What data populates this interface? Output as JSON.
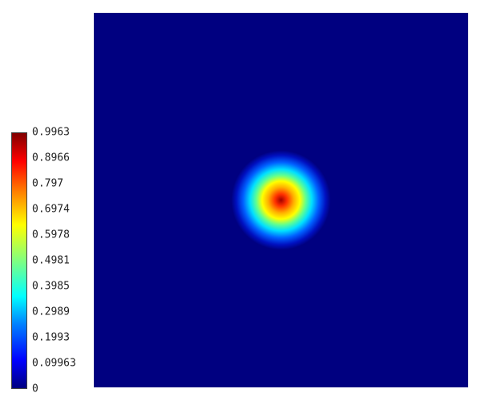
{
  "chart_data": {
    "type": "heatmap",
    "title": "",
    "xlabel": "",
    "ylabel": "",
    "colormap": "jet",
    "colorbar": {
      "min": 0,
      "max": 0.9963,
      "ticks": [
        "0.9963",
        "0.8966",
        "0.797",
        "0.6974",
        "0.5978",
        "0.4981",
        "0.3985",
        "0.2989",
        "0.1993",
        "0.09963",
        "0"
      ]
    },
    "field": {
      "shape": "gaussian-blob",
      "peak_value": 0.9963,
      "background_value": 0,
      "center": [
        0.5,
        0.5
      ],
      "sigma": 0.05
    }
  }
}
